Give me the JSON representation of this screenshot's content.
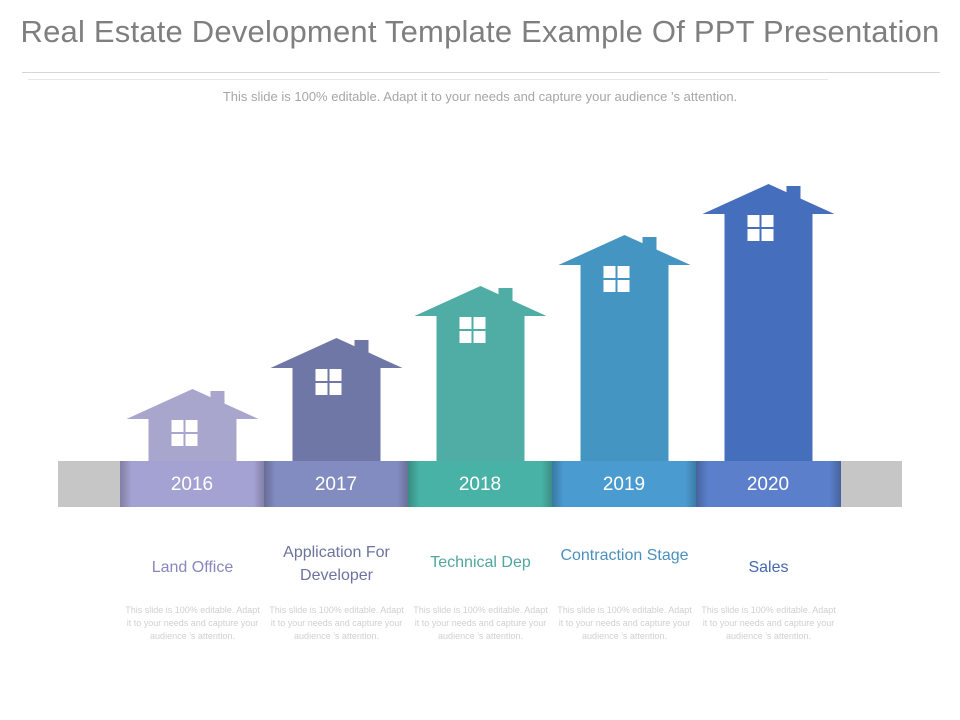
{
  "title": "Real Estate Development Template Example Of PPT Presentation",
  "subtitle": "This slide is 100% editable. Adapt it to your needs and capture your  audience ’s attention.",
  "colors": {
    "bar_gray": "#c6c6c6",
    "house_colors": [
      "#a8a6cd",
      "#6f77a6",
      "#4fada5",
      "#4495c2",
      "#456ebc"
    ],
    "band_colors": [
      "#a4a2d2",
      "#828cc0",
      "#49b2a6",
      "#4a9bd0",
      "#5b7fca"
    ]
  },
  "steps": [
    {
      "year": "2016",
      "label": "Land Office",
      "label_color": "#8986bb",
      "desc": "This slide is 100% editable. Adapt it to your needs and capture your audience ’s attention."
    },
    {
      "year": "2017",
      "label": "Application For Developer",
      "label_color": "#6d73a0",
      "desc": "This slide is 100% editable. Adapt it to your needs and capture your audience ’s attention."
    },
    {
      "year": "2018",
      "label": "Technical Dep",
      "label_color": "#4fa79f",
      "desc": "This slide is 100% editable. Adapt it to your needs and capture your audience ’s attention."
    },
    {
      "year": "2019",
      "label": "Contraction Stage",
      "label_color": "#4a90bd",
      "desc": "This slide is 100% editable. Adapt it to your needs and capture your audience ’s attention."
    },
    {
      "year": "2020",
      "label": "Sales",
      "label_color": "#4567b0",
      "desc": "This slide is 100% editable. Adapt it to your needs and capture your audience ’s attention."
    }
  ]
}
